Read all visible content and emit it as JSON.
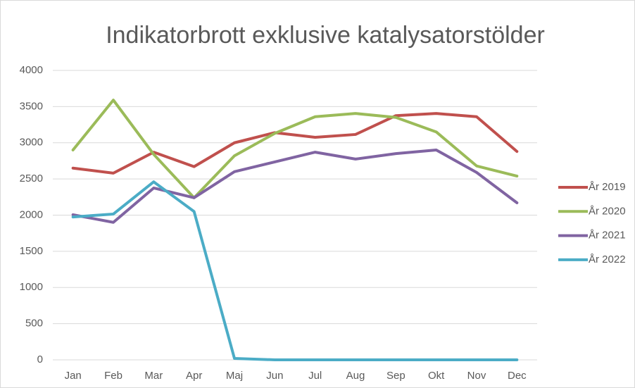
{
  "chart_data": {
    "type": "line",
    "title": "Indikatorbrott exklusive katalysatorstölder",
    "categories": [
      "Jan",
      "Feb",
      "Mar",
      "Apr",
      "Maj",
      "Jun",
      "Jul",
      "Aug",
      "Sep",
      "Okt",
      "Nov",
      "Dec"
    ],
    "series": [
      {
        "name": "År 2019",
        "color": "#c0504d",
        "values": [
          2650,
          2580,
          2870,
          2670,
          3000,
          3140,
          3075,
          3115,
          3375,
          3405,
          3360,
          2880
        ]
      },
      {
        "name": "År 2020",
        "color": "#9bbb59",
        "values": [
          2900,
          3590,
          2840,
          2240,
          2820,
          3130,
          3360,
          3405,
          3350,
          3150,
          2680,
          2540
        ]
      },
      {
        "name": "År 2021",
        "color": "#8064a2",
        "values": [
          2005,
          1900,
          2375,
          2240,
          2600,
          2735,
          2870,
          2775,
          2850,
          2900,
          2590,
          2170
        ]
      },
      {
        "name": "År 2022",
        "color": "#4bacc6",
        "values": [
          1975,
          2015,
          2460,
          2050,
          20,
          0,
          0,
          0,
          0,
          0,
          0,
          0
        ]
      }
    ],
    "ylim": [
      0,
      4000
    ],
    "yticks": [
      0,
      500,
      1000,
      1500,
      2000,
      2500,
      3000,
      3500,
      4000
    ],
    "grid": true,
    "legend": "right"
  }
}
